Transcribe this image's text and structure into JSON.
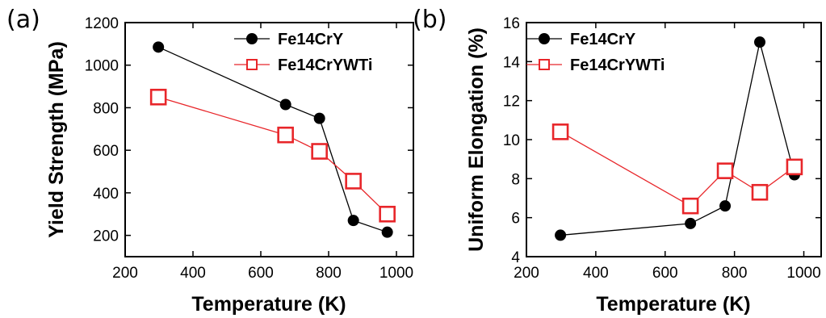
{
  "chart_data": [
    {
      "panel": "(a)",
      "type": "line",
      "xlabel": "Temperature (K)",
      "ylabel": "Yield Strength (MPa)",
      "xlim": [
        200,
        1050
      ],
      "ylim": [
        100,
        1200
      ],
      "xticks": [
        200,
        400,
        600,
        800,
        1000
      ],
      "yticks": [
        200,
        400,
        600,
        800,
        1000,
        1200
      ],
      "legend_position": "top-right",
      "series": [
        {
          "name": "Fe14CrY",
          "color": "#000000",
          "marker": "filled-circle",
          "x": [
            298,
            673,
            773,
            873,
            973
          ],
          "y": [
            1085,
            815,
            750,
            270,
            215
          ]
        },
        {
          "name": "Fe14CrYWTi",
          "color": "#e8262a",
          "marker": "open-square",
          "x": [
            298,
            673,
            773,
            873,
            973
          ],
          "y": [
            850,
            672,
            595,
            455,
            300
          ]
        }
      ]
    },
    {
      "panel": "(b)",
      "type": "line",
      "xlabel": "Temperature (K)",
      "ylabel": "Uniform Elongation (%)",
      "xlim": [
        200,
        1050
      ],
      "ylim": [
        4,
        16
      ],
      "xticks": [
        200,
        400,
        600,
        800,
        1000
      ],
      "yticks": [
        4,
        6,
        8,
        10,
        12,
        14,
        16
      ],
      "legend_position": "top-left",
      "series": [
        {
          "name": "Fe14CrY",
          "color": "#000000",
          "marker": "filled-circle",
          "x": [
            298,
            673,
            773,
            873,
            973
          ],
          "y": [
            5.1,
            5.7,
            6.6,
            15.0,
            8.2
          ]
        },
        {
          "name": "Fe14CrYWTi",
          "color": "#e8262a",
          "marker": "open-square",
          "x": [
            298,
            673,
            773,
            873,
            973
          ],
          "y": [
            10.4,
            6.6,
            8.4,
            7.3,
            8.6
          ]
        }
      ]
    }
  ]
}
